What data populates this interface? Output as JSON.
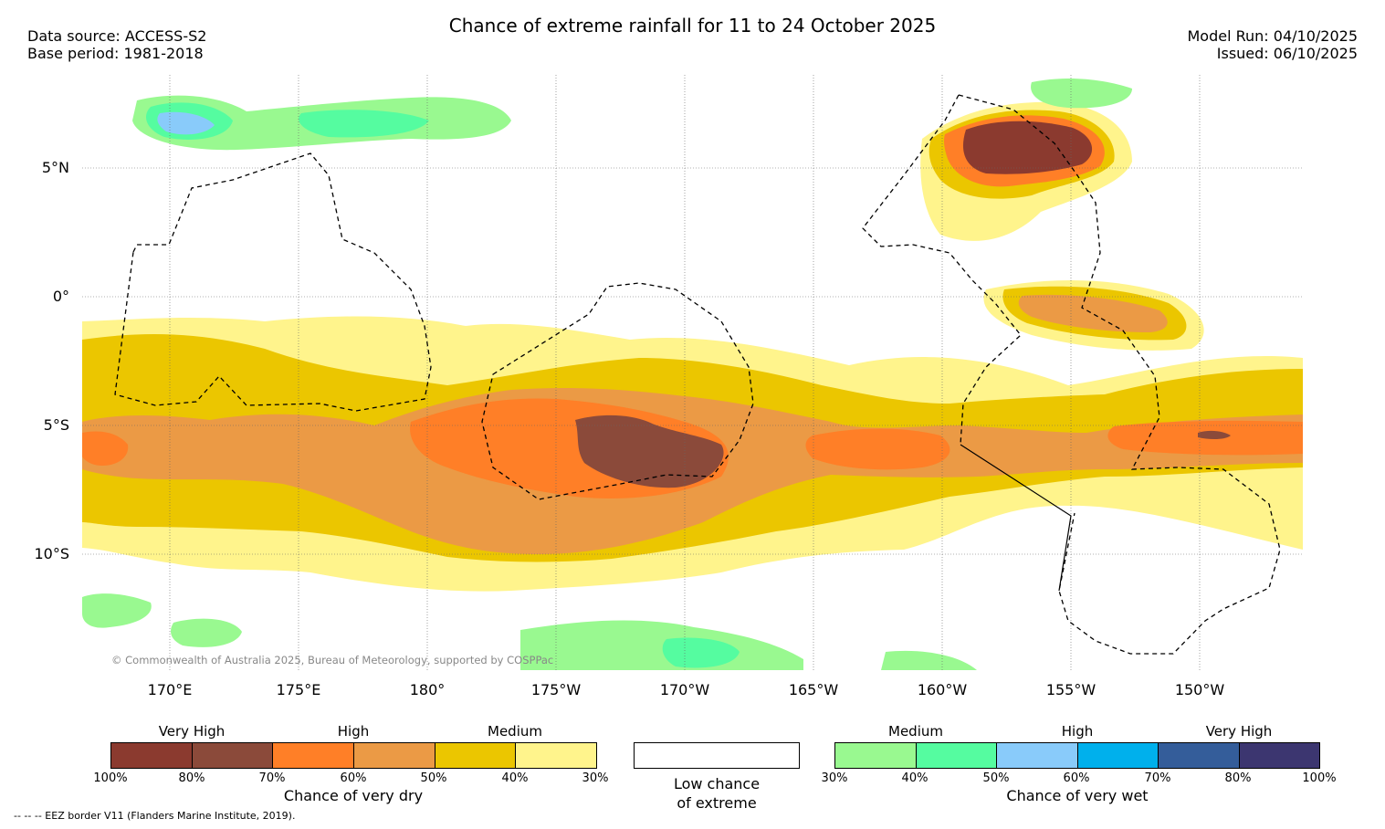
{
  "title": "Chance of extreme rainfall for 11 to 24 October 2025",
  "meta_left": {
    "source": "Data source: ACCESS-S2",
    "base_period": "Base period: 1981-2018"
  },
  "meta_right": {
    "model_run": "Model Run: 04/10/2025",
    "issued": "Issued: 06/10/2025"
  },
  "map": {
    "lat_labels": [
      "5°N",
      "0°",
      "5°S",
      "10°S"
    ],
    "lon_labels": [
      "170°E",
      "175°E",
      "180°",
      "175°W",
      "170°W",
      "165°W",
      "160°W",
      "155°W",
      "150°W"
    ],
    "copyright": "© Commonwealth of Australia 2025, Bureau of Meteorology, supported by COSPPac"
  },
  "colors": {
    "dry": [
      "#8B3A2F",
      "#8B4A3A",
      "#FF7F27",
      "#EB9A45",
      "#EBC600",
      "#FFF48C"
    ],
    "wet": [
      "#99F990",
      "#55FCA0",
      "#89CBFA",
      "#00B0EC",
      "#345D9A",
      "#3C3670"
    ],
    "low": "#FFFFFF"
  },
  "legend": {
    "dry": {
      "groups": [
        "Very High",
        "High",
        "Medium"
      ],
      "ticks": [
        "100%",
        "80%",
        "70%",
        "60%",
        "50%",
        "40%",
        "30%"
      ],
      "caption": "Chance of very dry"
    },
    "low": {
      "caption_line1": "Low chance",
      "caption_line2": "of extreme"
    },
    "wet": {
      "groups": [
        "Medium",
        "High",
        "Very High"
      ],
      "ticks": [
        "30%",
        "40%",
        "50%",
        "60%",
        "70%",
        "80%",
        "100%"
      ],
      "caption": "Chance of very wet"
    }
  },
  "eez_note": "--  --  -- EEZ border V11 (Flanders Marine Institute, 2019)."
}
